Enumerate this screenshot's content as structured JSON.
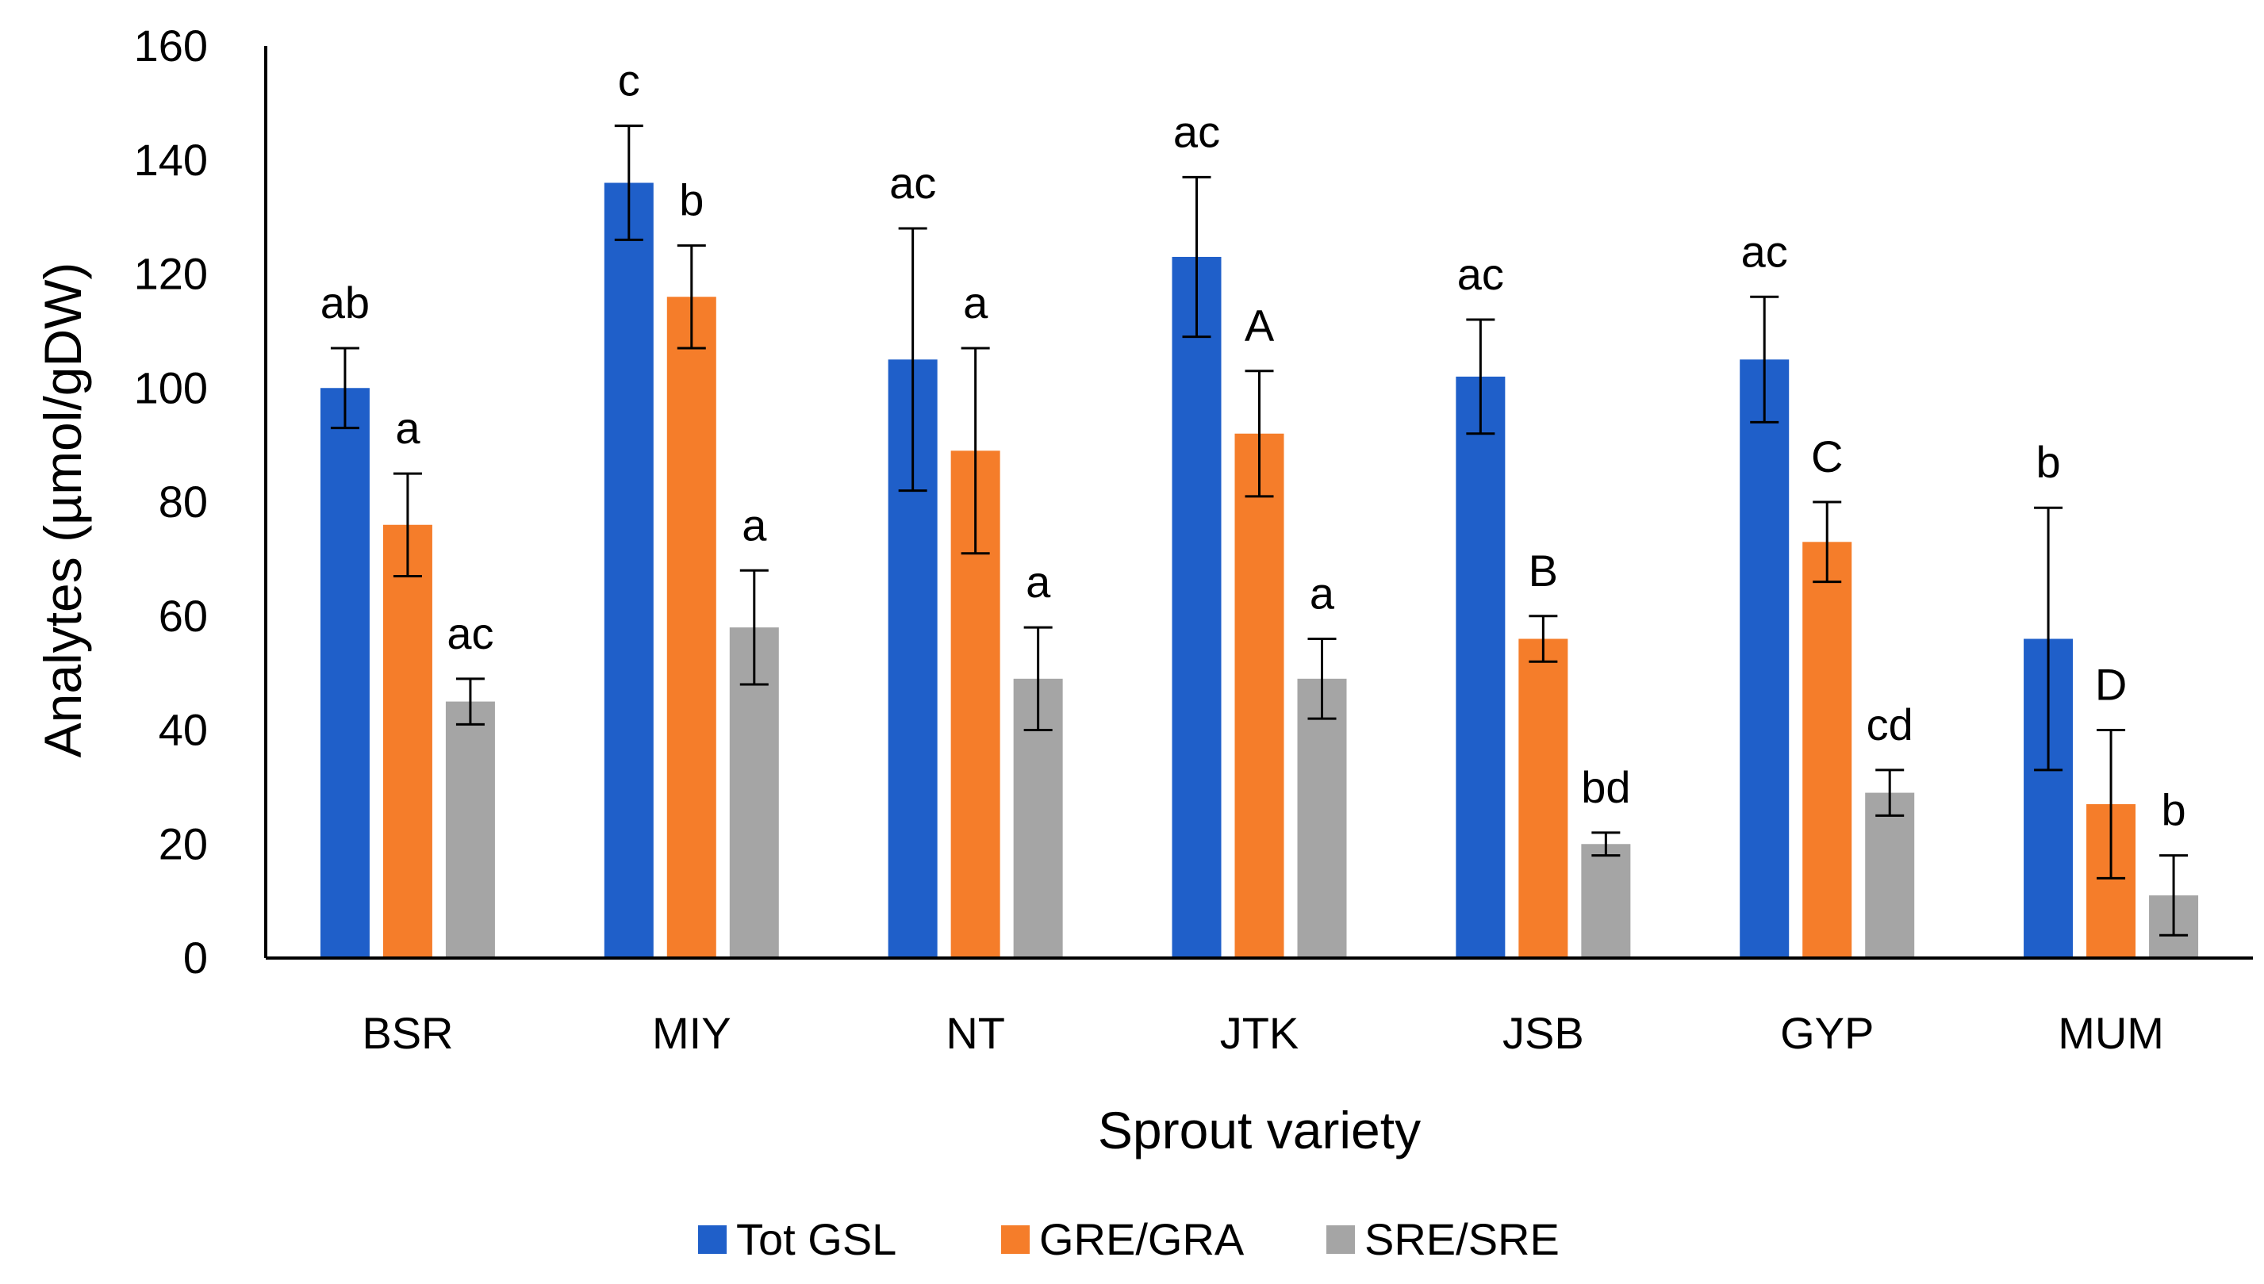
{
  "chart_data": {
    "type": "bar",
    "title": "",
    "xlabel": "Sprout variety",
    "ylabel": "Analytes (µmol/gDW)",
    "ylim": [
      0,
      160
    ],
    "yticks": [
      0,
      20,
      40,
      60,
      80,
      100,
      120,
      140,
      160
    ],
    "grid": false,
    "legend_position": "bottom",
    "categories": [
      "BSR",
      "MIY",
      "NT",
      "JTK",
      "JSB",
      "GYP",
      "MUM"
    ],
    "series": [
      {
        "name": "Tot GSL",
        "color": "#1f5fc9",
        "values": [
          100,
          136,
          105,
          123,
          102,
          105,
          56
        ],
        "errors": [
          7,
          10,
          23,
          14,
          10,
          11,
          23
        ],
        "labels": [
          "ab",
          "c",
          "ac",
          "ac",
          "ac",
          "ac",
          "b"
        ]
      },
      {
        "name": "GRE/GRA",
        "color": "#f57d2a",
        "values": [
          76,
          116,
          89,
          92,
          56,
          73,
          27
        ],
        "errors": [
          9,
          9,
          18,
          11,
          4,
          7,
          13
        ],
        "labels": [
          "a",
          "b",
          "a",
          "A",
          "B",
          "C",
          "D"
        ]
      },
      {
        "name": "SRE/SRE",
        "color": "#a5a5a5",
        "values": [
          45,
          58,
          49,
          49,
          20,
          29,
          11
        ],
        "errors": [
          4,
          10,
          9,
          7,
          2,
          4,
          7
        ],
        "labels": [
          "ac",
          "a",
          "a",
          "a",
          "bd",
          "cd",
          "b"
        ]
      }
    ]
  }
}
